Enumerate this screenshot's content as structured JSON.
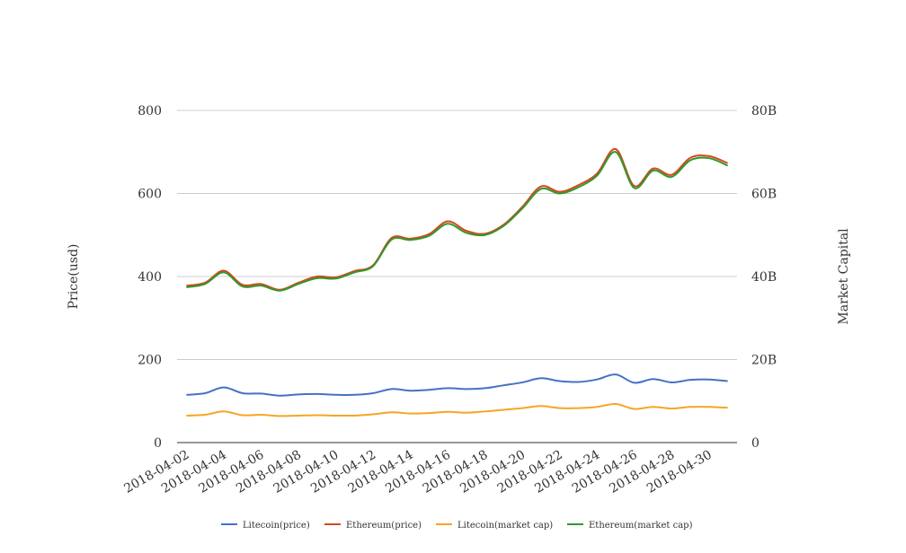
{
  "chart_data": {
    "type": "line",
    "x": [
      "2018-04-02",
      "2018-04-03",
      "2018-04-04",
      "2018-04-05",
      "2018-04-06",
      "2018-04-07",
      "2018-04-08",
      "2018-04-09",
      "2018-04-10",
      "2018-04-11",
      "2018-04-12",
      "2018-04-13",
      "2018-04-14",
      "2018-04-15",
      "2018-04-16",
      "2018-04-17",
      "2018-04-18",
      "2018-04-19",
      "2018-04-20",
      "2018-04-21",
      "2018-04-22",
      "2018-04-23",
      "2018-04-24",
      "2018-04-25",
      "2018-04-26",
      "2018-04-27",
      "2018-04-28",
      "2018-04-29",
      "2018-04-30",
      "2018-05-01"
    ],
    "x_tick_labels": [
      "2018-04-02",
      "2018-04-04",
      "2018-04-06",
      "2018-04-08",
      "2018-04-10",
      "2018-04-12",
      "2018-04-14",
      "2018-04-16",
      "2018-04-18",
      "2018-04-20",
      "2018-04-22",
      "2018-04-24",
      "2018-04-26",
      "2018-04-28",
      "2018-04-30"
    ],
    "y_left": {
      "label": "Price(usd)",
      "ylim": [
        0,
        800
      ],
      "ticks": [
        "0",
        "200",
        "400",
        "600",
        "800"
      ]
    },
    "y_right": {
      "label": "Market Capital",
      "ylim": [
        0,
        80
      ],
      "ticks": [
        "0",
        "20B",
        "40B",
        "60B",
        "80B"
      ]
    },
    "grid": true,
    "legend_position": "bottom",
    "series": [
      {
        "name": "Litecoin(price)",
        "axis": "left",
        "color": "#4472c4",
        "values": [
          115,
          119,
          133,
          119,
          118,
          113,
          116,
          117,
          115,
          115,
          119,
          129,
          125,
          127,
          131,
          129,
          131,
          138,
          145,
          155,
          148,
          146,
          152,
          164,
          144,
          153,
          145,
          151,
          152,
          148
        ]
      },
      {
        "name": "Ethereum(price)",
        "axis": "left",
        "color": "#d9461c",
        "values": [
          378,
          385,
          414,
          380,
          382,
          368,
          385,
          400,
          398,
          413,
          427,
          493,
          491,
          502,
          533,
          510,
          503,
          525,
          568,
          617,
          604,
          620,
          648,
          707,
          618,
          660,
          645,
          686,
          690,
          673
        ]
      },
      {
        "name": "Litecoin(market cap)",
        "axis": "right",
        "color": "#f5a623",
        "values": [
          6.5,
          6.7,
          7.5,
          6.6,
          6.7,
          6.4,
          6.5,
          6.6,
          6.5,
          6.5,
          6.8,
          7.3,
          7.0,
          7.1,
          7.4,
          7.2,
          7.5,
          7.9,
          8.3,
          8.8,
          8.3,
          8.3,
          8.6,
          9.3,
          8.1,
          8.6,
          8.2,
          8.6,
          8.6,
          8.4
        ]
      },
      {
        "name": "Ethereum(market cap)",
        "axis": "right",
        "color": "#2e9a2e",
        "values": [
          37.4,
          38.2,
          41.0,
          37.6,
          37.8,
          36.6,
          38.2,
          39.6,
          39.5,
          41.0,
          42.5,
          48.9,
          48.8,
          49.8,
          52.7,
          50.5,
          50.0,
          52.2,
          56.4,
          61.1,
          60.0,
          61.5,
          64.3,
          70.0,
          61.3,
          65.5,
          64.0,
          68.0,
          68.5,
          66.7
        ]
      }
    ]
  }
}
